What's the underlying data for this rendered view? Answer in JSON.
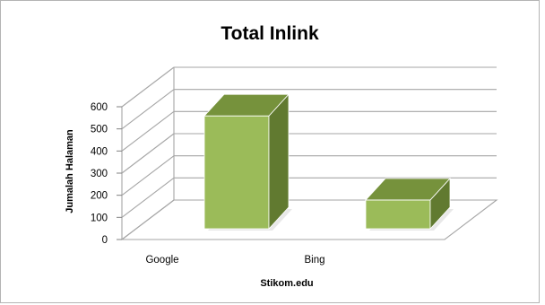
{
  "chart_data": {
    "type": "bar",
    "title": "Total Inlink",
    "xlabel": "Stikom.edu",
    "ylabel": "Jumalah Halaman",
    "categories": [
      "Google",
      "Bing"
    ],
    "values": [
      510,
      130
    ],
    "ylim": [
      0,
      600
    ],
    "yticks": [
      "0",
      "100",
      "200",
      "300",
      "400",
      "500",
      "600"
    ],
    "grid": true,
    "legend": "none",
    "style": "3d-column",
    "colors": {
      "bar_front": "#9bbb59",
      "bar_top": "#76923c",
      "bar_side": "#617a30",
      "gridline": "#a6a6a6"
    }
  }
}
